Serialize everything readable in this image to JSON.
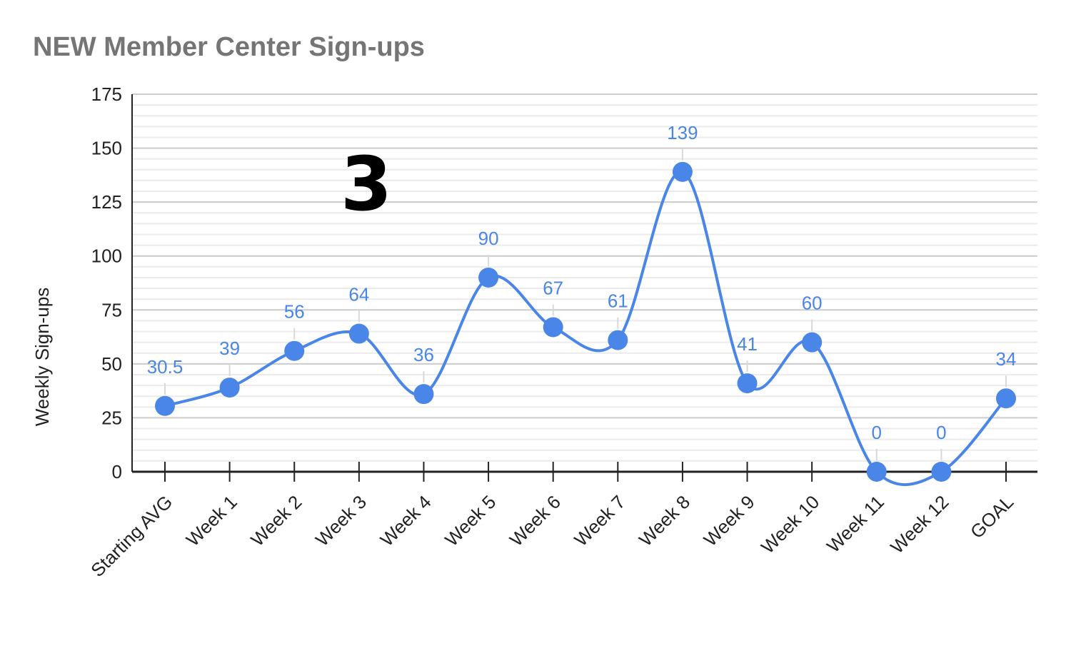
{
  "chart_data": {
    "type": "line",
    "title": "NEW Member Center Sign-ups",
    "xlabel": "",
    "ylabel": "Weekly Sign-ups",
    "categories": [
      "Starting AVG",
      "Week 1",
      "Week 2",
      "Week 3",
      "Week 4",
      "Week 5",
      "Week 6",
      "Week 7",
      "Week 8",
      "Week 9",
      "Week 10",
      "Week 11",
      "Week 12",
      "GOAL"
    ],
    "series": [
      {
        "values": [
          30.5,
          39,
          56,
          64,
          36,
          90,
          67,
          61,
          139,
          41,
          60,
          0,
          0,
          34
        ],
        "color": "#4a86e8"
      }
    ],
    "data_labels": [
      "30.5",
      "39",
      "56",
      "64",
      "36",
      "90",
      "67",
      "61",
      "139",
      "41",
      "60",
      "0",
      "0",
      "34"
    ],
    "ylim": [
      0,
      175
    ],
    "yticks": [
      0,
      25,
      50,
      75,
      100,
      125,
      150,
      175
    ],
    "ytick_labels": [
      "0",
      "25",
      "50",
      "75",
      "100",
      "125",
      "150",
      "175"
    ],
    "grid": true,
    "smooth": true,
    "legend": "none"
  },
  "overlay": {
    "number": "3"
  },
  "colors": {
    "series": "#4a86e8",
    "title": "#757575",
    "grid_major": "#cccccc",
    "grid_minor": "#ebebeb",
    "axis": "#222222"
  }
}
